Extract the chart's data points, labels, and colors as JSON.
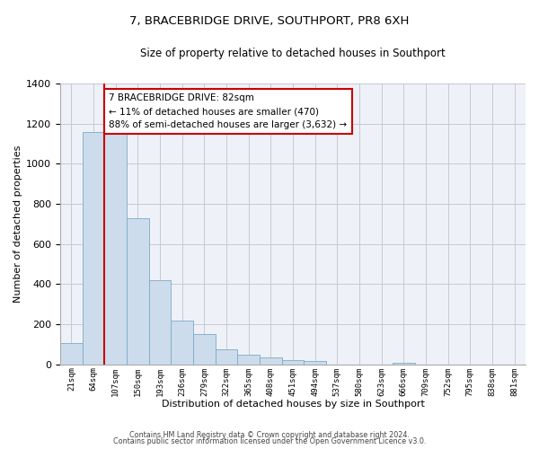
{
  "title": "7, BRACEBRIDGE DRIVE, SOUTHPORT, PR8 6XH",
  "subtitle": "Size of property relative to detached houses in Southport",
  "xlabel": "Distribution of detached houses by size in Southport",
  "ylabel": "Number of detached properties",
  "bar_color": "#ccdcec",
  "bar_edge_color": "#7aaac8",
  "categories": [
    "21sqm",
    "64sqm",
    "107sqm",
    "150sqm",
    "193sqm",
    "236sqm",
    "279sqm",
    "322sqm",
    "365sqm",
    "408sqm",
    "451sqm",
    "494sqm",
    "537sqm",
    "580sqm",
    "623sqm",
    "666sqm",
    "709sqm",
    "752sqm",
    "795sqm",
    "838sqm",
    "881sqm"
  ],
  "values": [
    107,
    1160,
    1160,
    730,
    420,
    220,
    150,
    75,
    50,
    35,
    20,
    15,
    0,
    0,
    0,
    10,
    0,
    0,
    0,
    0,
    0
  ],
  "ylim": [
    0,
    1400
  ],
  "yticks": [
    0,
    200,
    400,
    600,
    800,
    1000,
    1200,
    1400
  ],
  "annotation_text": "7 BRACEBRIDGE DRIVE: 82sqm\n← 11% of detached houses are smaller (470)\n88% of semi-detached houses are larger (3,632) →",
  "annotation_box_color": "#ffffff",
  "annotation_box_edge": "#cc0000",
  "footer_line1": "Contains HM Land Registry data © Crown copyright and database right 2024.",
  "footer_line2": "Contains public sector information licensed under the Open Government Licence v3.0.",
  "background_color": "#ffffff",
  "plot_background": "#eef2f8",
  "grid_color": "#c8c8d0",
  "red_line_x": 1.5
}
